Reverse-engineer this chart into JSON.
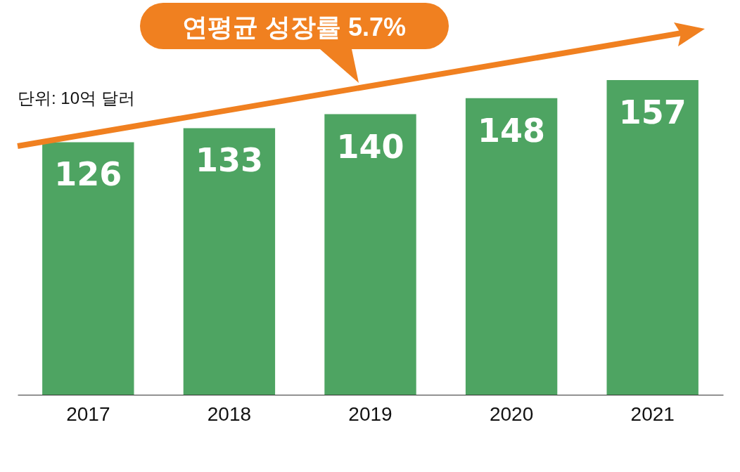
{
  "chart_data": {
    "type": "bar",
    "categories": [
      "2017",
      "2018",
      "2019",
      "2020",
      "2021"
    ],
    "values": [
      126,
      133,
      140,
      148,
      157
    ],
    "color": "#4ea462",
    "data_labels": true,
    "annotations": [
      "연평균 성장률 5.7%",
      "단위: 10억 달러"
    ]
  }
}
